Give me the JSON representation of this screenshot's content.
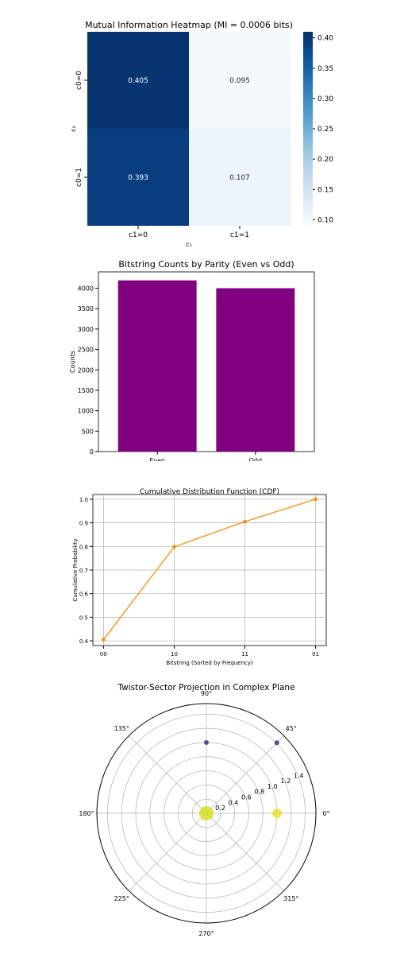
{
  "chart_data": [
    {
      "type": "heatmap",
      "title": "Mutual Information Heatmap (MI = 0.0006 bits)",
      "xlabel": "c₁",
      "ylabel": "c₀",
      "x_labels": [
        "c1=0",
        "c1=1"
      ],
      "y_labels": [
        "c0=0",
        "c0=1"
      ],
      "values": [
        [
          0.405,
          0.095
        ],
        [
          0.393,
          0.107
        ]
      ],
      "value_labels": [
        [
          "0.405",
          "0.095"
        ],
        [
          "0.393",
          "0.107"
        ]
      ],
      "colormap": "Blues",
      "colorbar": {
        "range": [
          0.09,
          0.41
        ],
        "ticks": [
          0.1,
          0.15,
          0.2,
          0.25,
          0.3,
          0.35,
          0.4
        ],
        "tick_labels": [
          "0.10",
          "0.15",
          "0.20",
          "0.25",
          "0.30",
          "0.35",
          "0.40"
        ]
      }
    },
    {
      "type": "bar",
      "title": "Bitstring Counts by Parity (Even vs Odd)",
      "xlabel": "",
      "ylabel": "Counts",
      "categories": [
        "Even",
        "Odd"
      ],
      "values": [
        4192,
        4000
      ],
      "ylim": [
        0,
        4400
      ],
      "y_ticks": [
        0,
        500,
        1000,
        1500,
        2000,
        2500,
        3000,
        3500,
        4000
      ],
      "y_tick_labels": [
        "0",
        "500",
        "1000",
        "1500",
        "2000",
        "2500",
        "3000",
        "3500",
        "4000"
      ],
      "color": "#800080",
      "grid": false
    },
    {
      "type": "line",
      "title": "Cumulative Distribution Function (CDF)",
      "xlabel": "Bitstring (Sorted by Frequency)",
      "ylabel": "Cumulative Probability",
      "x": [
        "00",
        "10",
        "11",
        "01"
      ],
      "y": [
        0.405,
        0.798,
        0.905,
        1.0
      ],
      "ylim": [
        0.38,
        1.02
      ],
      "y_ticks": [
        0.4,
        0.5,
        0.6,
        0.7,
        0.8,
        0.9,
        1.0
      ],
      "y_tick_labels": [
        "0.4",
        "0.5",
        "0.6",
        "0.7",
        "0.8",
        "0.9",
        "1.0"
      ],
      "color": "#ff8c00",
      "grid": true,
      "markers": true
    },
    {
      "type": "scatter",
      "title": "Twistor-Sector Projection in Complex Plane",
      "projection": "polar",
      "r_max": 1.55,
      "r_ticks": [
        0.2,
        0.4,
        0.6,
        0.8,
        1.0,
        1.2,
        1.4
      ],
      "r_tick_labels": [
        "0.2",
        "0.4",
        "0.6",
        "0.8",
        "1.0",
        "1.2",
        "1.4"
      ],
      "theta_ticks_deg": [
        0,
        45,
        90,
        135,
        180,
        225,
        270,
        315
      ],
      "theta_tick_labels": [
        "0°",
        "45°",
        "90°",
        "135°",
        "180°",
        "225°",
        "270°",
        "315°"
      ],
      "grid": true,
      "points": [
        {
          "theta_deg": 0,
          "r": 0.0,
          "size": 9,
          "color": "#d8e020"
        },
        {
          "theta_deg": 0,
          "r": 1.0,
          "size": 6,
          "color": "#ece030"
        },
        {
          "theta_deg": 45,
          "r": 1.41,
          "size": 2.5,
          "color": "#3b3aa0"
        },
        {
          "theta_deg": 90,
          "r": 1.0,
          "size": 2.5,
          "color": "#3b3aa0"
        }
      ]
    }
  ]
}
